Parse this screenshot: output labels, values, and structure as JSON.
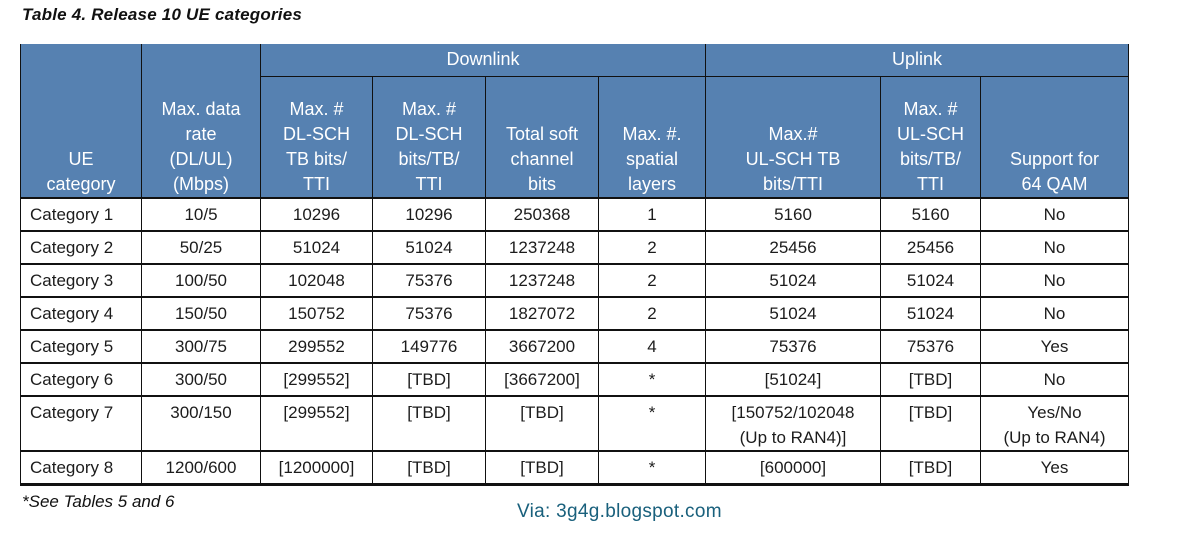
{
  "title": "Table 4. Release 10 UE categories",
  "footnote": "*See Tables 5 and 6",
  "via": "Via: 3g4g.blogspot.com",
  "colors": {
    "header_bg": "#5681B1",
    "header_text": "#FFFFFF",
    "body_text": "#1C1C1C",
    "border": "#111111",
    "via_text": "#19607C"
  },
  "table": {
    "corner_headers": [
      "UE\ncategory",
      "Max. data\nrate\n(DL/UL)\n(Mbps)"
    ],
    "group_headers": [
      {
        "label": "Downlink",
        "colspan": 4
      },
      {
        "label": "Uplink",
        "colspan": 3
      }
    ],
    "sub_headers": [
      "Max. #\nDL-SCH\nTB bits/\nTTI",
      "Max. #\nDL-SCH\nbits/TB/\nTTI",
      "Total soft\nchannel\nbits",
      "Max. #.\nspatial\nlayers",
      "Max.#\nUL-SCH TB\nbits/TTI",
      "Max. #\nUL-SCH\nbits/TB/\nTTI",
      "Support for\n64 QAM"
    ],
    "rows": [
      [
        "Category 1",
        "10/5",
        "10296",
        "10296",
        "250368",
        "1",
        "5160",
        "5160",
        "No"
      ],
      [
        "Category 2",
        "50/25",
        "51024",
        "51024",
        "1237248",
        "2",
        "25456",
        "25456",
        "No"
      ],
      [
        "Category 3",
        "100/50",
        "102048",
        "75376",
        "1237248",
        "2",
        "51024",
        "51024",
        "No"
      ],
      [
        "Category 4",
        "150/50",
        "150752",
        "75376",
        "1827072",
        "2",
        "51024",
        "51024",
        "No"
      ],
      [
        "Category 5",
        "300/75",
        "299552",
        "149776",
        "3667200",
        "4",
        "75376",
        "75376",
        "Yes"
      ],
      [
        "Category 6",
        "300/50",
        "[299552]",
        "[TBD]",
        "[3667200]",
        "*",
        "[51024]",
        "[TBD]",
        "No"
      ],
      [
        "Category 7",
        "300/150",
        "[299552]",
        "[TBD]",
        "[TBD]",
        "*",
        "[150752/102048\n(Up to RAN4)]",
        "[TBD]",
        "Yes/No\n(Up to RAN4)"
      ],
      [
        "Category 8",
        "1200/600",
        "[1200000]",
        "[TBD]",
        "[TBD]",
        "*",
        "[600000]",
        "[TBD]",
        "Yes"
      ]
    ]
  }
}
